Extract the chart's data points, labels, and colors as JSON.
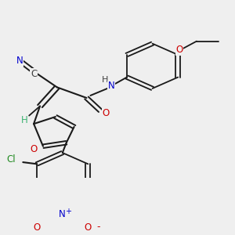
{
  "bg_color": "#efefef",
  "bond_color": "#1a1a1a",
  "atom_colors": {
    "N": "#0000cc",
    "O": "#cc0000",
    "Cl": "#228b22",
    "C": "#404040",
    "H": "#3cb371"
  }
}
